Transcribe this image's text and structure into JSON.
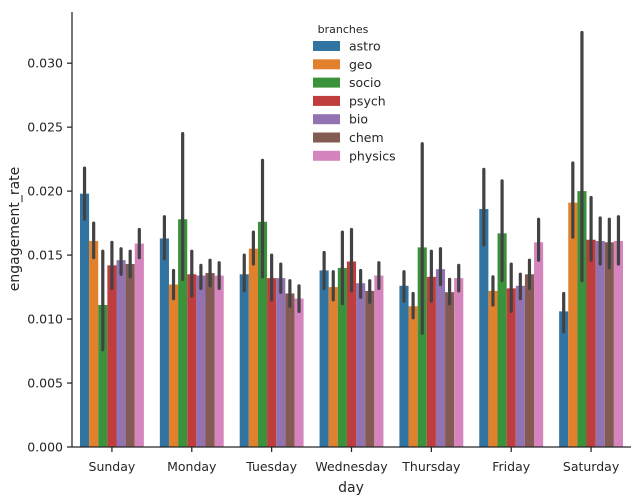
{
  "chart_data": {
    "type": "bar",
    "xlabel": "day",
    "ylabel": "engagement_rate",
    "categories": [
      "Sunday",
      "Monday",
      "Tuesday",
      "Wednesday",
      "Thursday",
      "Friday",
      "Saturday"
    ],
    "ylim": [
      0,
      0.034
    ],
    "yticks": [
      "0.000",
      "0.005",
      "0.010",
      "0.015",
      "0.020",
      "0.025",
      "0.030"
    ],
    "grid": false,
    "legend": {
      "title": "branches",
      "placement": "top-center"
    },
    "series": [
      {
        "name": "astro",
        "color": "#3274a1",
        "values": [
          0.0198,
          0.0163,
          0.0135,
          0.0138,
          0.0126,
          0.0186,
          0.0106
        ],
        "ci_low": [
          0.0178,
          0.0147,
          0.0122,
          0.0124,
          0.0114,
          0.0158,
          0.009
        ],
        "ci_high": [
          0.0218,
          0.018,
          0.015,
          0.0152,
          0.0137,
          0.0217,
          0.012
        ]
      },
      {
        "name": "geo",
        "color": "#e1812c",
        "values": [
          0.0161,
          0.0127,
          0.0155,
          0.0125,
          0.011,
          0.0122,
          0.0191
        ],
        "ci_low": [
          0.0148,
          0.0116,
          0.0143,
          0.0115,
          0.0101,
          0.0111,
          0.0164
        ],
        "ci_high": [
          0.0175,
          0.0138,
          0.0168,
          0.0137,
          0.012,
          0.0133,
          0.0222
        ]
      },
      {
        "name": "socio",
        "color": "#3a923a",
        "values": [
          0.0111,
          0.0178,
          0.0176,
          0.014,
          0.0156,
          0.0167,
          0.02
        ],
        "ci_low": [
          0.0076,
          0.0131,
          0.0133,
          0.0112,
          0.0089,
          0.013,
          0.013
        ],
        "ci_high": [
          0.0153,
          0.0245,
          0.0224,
          0.0168,
          0.0237,
          0.0208,
          0.0324
        ]
      },
      {
        "name": "psych",
        "color": "#c03d3e",
        "values": [
          0.0142,
          0.0135,
          0.0132,
          0.0145,
          0.0133,
          0.0124,
          0.0162
        ],
        "ci_low": [
          0.0124,
          0.0118,
          0.0115,
          0.0122,
          0.0114,
          0.0106,
          0.0146
        ],
        "ci_high": [
          0.016,
          0.0153,
          0.015,
          0.017,
          0.0153,
          0.0143,
          0.0195
        ]
      },
      {
        "name": "bio",
        "color": "#9372b2",
        "values": [
          0.0146,
          0.0134,
          0.0132,
          0.0128,
          0.0139,
          0.0126,
          0.0161
        ],
        "ci_low": [
          0.0135,
          0.0124,
          0.0121,
          0.0117,
          0.0127,
          0.0116,
          0.0143
        ],
        "ci_high": [
          0.0155,
          0.0142,
          0.0143,
          0.0138,
          0.0155,
          0.0135,
          0.0179
        ]
      },
      {
        "name": "chem",
        "color": "#845b53",
        "values": [
          0.0143,
          0.0136,
          0.012,
          0.0122,
          0.0121,
          0.0135,
          0.016
        ],
        "ci_low": [
          0.0133,
          0.0126,
          0.011,
          0.0113,
          0.0112,
          0.0124,
          0.014
        ],
        "ci_high": [
          0.0153,
          0.0146,
          0.013,
          0.013,
          0.0131,
          0.0146,
          0.0178
        ]
      },
      {
        "name": "physics",
        "color": "#d684bd",
        "values": [
          0.0159,
          0.0134,
          0.0116,
          0.0134,
          0.0132,
          0.016,
          0.0161
        ],
        "ci_low": [
          0.0148,
          0.0124,
          0.0106,
          0.0124,
          0.0122,
          0.0146,
          0.0143
        ],
        "ci_high": [
          0.017,
          0.0144,
          0.0126,
          0.0144,
          0.0142,
          0.0178,
          0.018
        ]
      }
    ]
  }
}
